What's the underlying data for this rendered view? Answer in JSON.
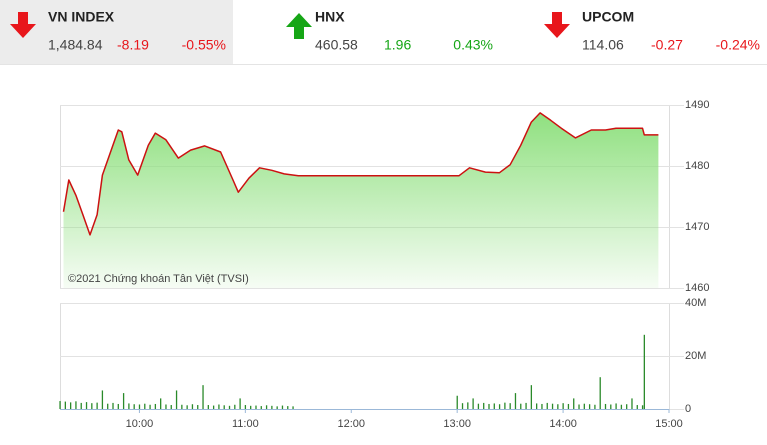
{
  "indices": [
    {
      "name": "VN INDEX",
      "value": "1,484.84",
      "change": "-8.19",
      "percent": "-0.55%",
      "direction": "down"
    },
    {
      "name": "HNX",
      "value": "460.58",
      "change": "1.96",
      "percent": "0.43%",
      "direction": "up"
    },
    {
      "name": "UPCOM",
      "value": "114.06",
      "change": "-0.27",
      "percent": "-0.24%",
      "direction": "down"
    }
  ],
  "chart_data": [
    {
      "type": "area",
      "annotation": "©2021 Chứng khoán Tân Việt (TVSI)",
      "color": "#cc1111",
      "fill": "#8fe07f",
      "xlim": [
        "09:15",
        "15:00"
      ],
      "ylim": [
        1460,
        1490
      ],
      "yticks": [
        1460,
        1470,
        1480,
        1490
      ],
      "grid": true,
      "x": [
        "09:17",
        "09:20",
        "09:24",
        "09:28",
        "09:32",
        "09:36",
        "09:39",
        "09:44",
        "09:48",
        "09:50",
        "09:54",
        "09:59",
        "10:05",
        "10:09",
        "10:15",
        "10:22",
        "10:29",
        "10:37",
        "10:46",
        "10:53",
        "10:56",
        "11:02",
        "11:08",
        "11:15",
        "11:22",
        "11:30",
        "13:01",
        "13:07",
        "13:16",
        "13:24",
        "13:30",
        "13:36",
        "13:42",
        "13:47",
        "13:53",
        "13:59",
        "14:07",
        "14:16",
        "14:24",
        "14:30",
        "14:45",
        "14:46",
        "14:54"
      ],
      "values": [
        1472.5,
        1477.7,
        1475.2,
        1472,
        1468.7,
        1472,
        1478.5,
        1482.6,
        1485.9,
        1485.6,
        1481,
        1478.5,
        1483.4,
        1485.4,
        1484.3,
        1481.3,
        1482.6,
        1483.3,
        1482.3,
        1477.7,
        1475.7,
        1478,
        1479.7,
        1479.3,
        1478.7,
        1478.4,
        1478.4,
        1479.7,
        1479,
        1478.9,
        1480.2,
        1483.4,
        1487.2,
        1488.7,
        1487.5,
        1486.2,
        1484.6,
        1485.9,
        1485.9,
        1486.2,
        1486.2,
        1485.1,
        1485.1
      ]
    },
    {
      "type": "bar",
      "color": "#2a8a2a",
      "xlim": [
        "09:15",
        "15:00"
      ],
      "xticks": [
        "10:00",
        "11:00",
        "12:00",
        "13:00",
        "14:00",
        "15:00"
      ],
      "ylim": [
        0,
        40000000
      ],
      "yticks": [
        0,
        {
          "value": 20000000,
          "label": "20M"
        },
        {
          "value": 40000000,
          "label": "40M"
        }
      ],
      "grid": true,
      "x": [
        "09:15",
        "09:18",
        "09:21",
        "09:24",
        "09:27",
        "09:30",
        "09:33",
        "09:36",
        "09:39",
        "09:42",
        "09:45",
        "09:48",
        "09:51",
        "09:54",
        "09:57",
        "10:00",
        "10:03",
        "10:06",
        "10:09",
        "10:12",
        "10:15",
        "10:18",
        "10:21",
        "10:24",
        "10:27",
        "10:30",
        "10:33",
        "10:36",
        "10:39",
        "10:42",
        "10:45",
        "10:48",
        "10:51",
        "10:54",
        "10:57",
        "11:00",
        "11:03",
        "11:06",
        "11:09",
        "11:12",
        "11:15",
        "11:18",
        "11:21",
        "11:24",
        "11:27",
        "13:00",
        "13:03",
        "13:06",
        "13:09",
        "13:12",
        "13:15",
        "13:18",
        "13:21",
        "13:24",
        "13:27",
        "13:30",
        "13:33",
        "13:36",
        "13:39",
        "13:42",
        "13:45",
        "13:48",
        "13:51",
        "13:54",
        "13:57",
        "14:00",
        "14:03",
        "14:06",
        "14:09",
        "14:12",
        "14:15",
        "14:18",
        "14:21",
        "14:24",
        "14:27",
        "14:30",
        "14:33",
        "14:36",
        "14:39",
        "14:42",
        "14:45",
        "14:46"
      ],
      "values": [
        3000000,
        2800000,
        2500000,
        2900000,
        2300000,
        2600000,
        2200000,
        2400000,
        7000000,
        2000000,
        2300000,
        1900000,
        6000000,
        2100000,
        1800000,
        1700000,
        2000000,
        1600000,
        1900000,
        4000000,
        1700000,
        1500000,
        7000000,
        1600000,
        1400000,
        1800000,
        1500000,
        9000000,
        1500000,
        1300000,
        1700000,
        1400000,
        1200000,
        1600000,
        4000000,
        1500000,
        1200000,
        1300000,
        1100000,
        1400000,
        1200000,
        1000000,
        1300000,
        1100000,
        1000000,
        5000000,
        2200000,
        2500000,
        4000000,
        2000000,
        2300000,
        1900000,
        2100000,
        1800000,
        2400000,
        2200000,
        6000000,
        2000000,
        2300000,
        9000000,
        2100000,
        1900000,
        2300000,
        2000000,
        1800000,
        2200000,
        1900000,
        4000000,
        1700000,
        2000000,
        1800000,
        1600000,
        12000000,
        1900000,
        1700000,
        2100000,
        1600000,
        1800000,
        4000000,
        1500000,
        1400000,
        28000000
      ]
    }
  ]
}
